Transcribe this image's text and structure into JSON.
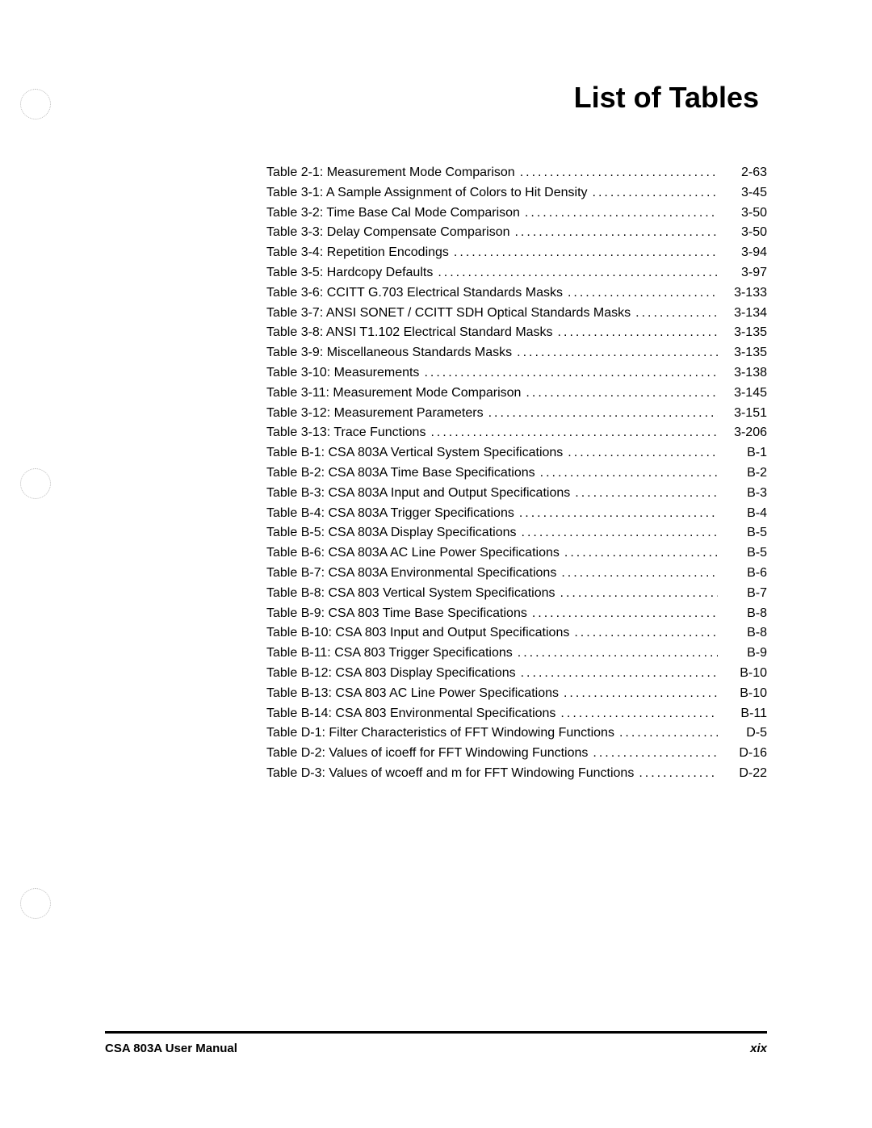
{
  "heading": "List of Tables",
  "footer_left": "CSA 803A User Manual",
  "footer_right": "xix",
  "entries": [
    {
      "label": "Table 2-1:  Measurement Mode Comparison",
      "page": "2-63"
    },
    {
      "label": "Table 3-1:  A Sample Assignment of Colors to Hit Density",
      "page": "3-45"
    },
    {
      "label": "Table 3-2:  Time Base Cal Mode Comparison",
      "page": "3-50"
    },
    {
      "label": "Table 3-3:  Delay Compensate Comparison",
      "page": "3-50"
    },
    {
      "label": "Table 3-4:  Repetition Encodings",
      "page": "3-94"
    },
    {
      "label": "Table 3-5:  Hardcopy Defaults",
      "page": "3-97"
    },
    {
      "label": "Table 3-6:  CCITT G.703 Electrical Standards Masks",
      "page": "3-133"
    },
    {
      "label": "Table 3-7:  ANSI SONET / CCITT SDH Optical Standards Masks",
      "page": "3-134"
    },
    {
      "label": "Table 3-8:  ANSI T1.102 Electrical Standard Masks",
      "page": "3-135"
    },
    {
      "label": "Table 3-9:  Miscellaneous Standards Masks",
      "page": "3-135"
    },
    {
      "label": "Table 3-10:  Measurements",
      "page": "3-138"
    },
    {
      "label": "Table 3-11:  Measurement Mode Comparison",
      "page": "3-145"
    },
    {
      "label": "Table 3-12:  Measurement Parameters",
      "page": "3-151"
    },
    {
      "label": "Table 3-13:  Trace Functions",
      "page": "3-206"
    },
    {
      "label": "Table B-1:  CSA 803A Vertical System Specifications",
      "page": "B-1"
    },
    {
      "label": "Table B-2:  CSA 803A Time Base Specifications",
      "page": "B-2"
    },
    {
      "label": "Table B-3:  CSA 803A Input and Output Specifications",
      "page": "B-3"
    },
    {
      "label": "Table B-4:  CSA 803A Trigger Specifications",
      "page": "B-4"
    },
    {
      "label": "Table B-5:  CSA 803A Display Specifications",
      "page": "B-5"
    },
    {
      "label": "Table B-6:  CSA 803A AC Line Power Specifications",
      "page": "B-5"
    },
    {
      "label": "Table B-7:  CSA 803A Environmental Specifications",
      "page": "B-6"
    },
    {
      "label": "Table B-8:  CSA 803 Vertical System Specifications",
      "page": "B-7"
    },
    {
      "label": "Table B-9:  CSA 803 Time Base Specifications",
      "page": "B-8"
    },
    {
      "label": "Table B-10:  CSA 803 Input and Output Specifications",
      "page": "B-8"
    },
    {
      "label": "Table B-11:  CSA 803 Trigger Specifications",
      "page": "B-9"
    },
    {
      "label": "Table B-12:  CSA 803 Display Specifications",
      "page": "B-10"
    },
    {
      "label": "Table B-13:  CSA 803 AC Line Power Specifications",
      "page": "B-10"
    },
    {
      "label": "Table B-14:  CSA 803 Environmental Specifications",
      "page": "B-11"
    },
    {
      "label": "Table D-1:  Filter Characteristics of FFT Windowing Functions",
      "page": "D-5"
    },
    {
      "label": "Table D-2:  Values of icoeff for FFT Windowing Functions",
      "page": "D-16"
    },
    {
      "label": "Table D-3:  Values of wcoeff and m for FFT Windowing Functions",
      "page": "D-22"
    }
  ]
}
